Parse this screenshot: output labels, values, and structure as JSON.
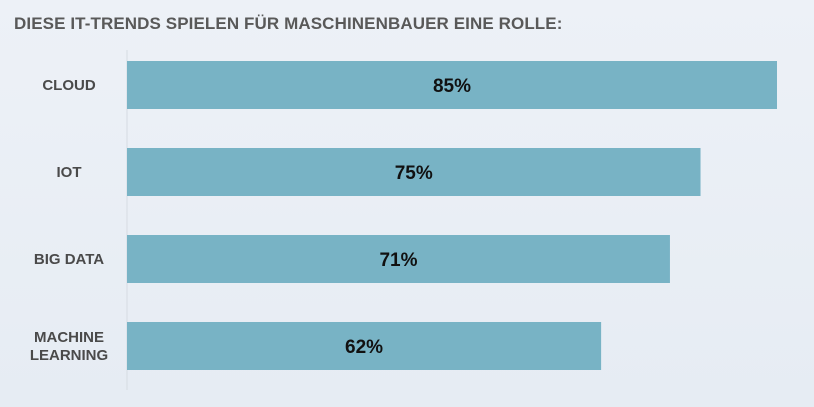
{
  "chart_data": {
    "type": "bar",
    "orientation": "horizontal",
    "title": "DIESE IT-TRENDS SPIELEN FÜR MASCHINENBAUER EINE ROLLE:",
    "categories": [
      "CLOUD",
      "IOT",
      "BIG DATA",
      "MACHINE LEARNING"
    ],
    "category_lines": [
      [
        "CLOUD"
      ],
      [
        "IOT"
      ],
      [
        "BIG DATA"
      ],
      [
        "MACHINE",
        "LEARNING"
      ]
    ],
    "values": [
      85,
      75,
      71,
      62
    ],
    "value_labels": [
      "85%",
      "75%",
      "71%",
      "62%"
    ],
    "xlim": [
      0,
      85
    ],
    "bar_color": "#78b3c5",
    "axis_color": "#d6dbe2",
    "grid": false,
    "legend": "none"
  }
}
